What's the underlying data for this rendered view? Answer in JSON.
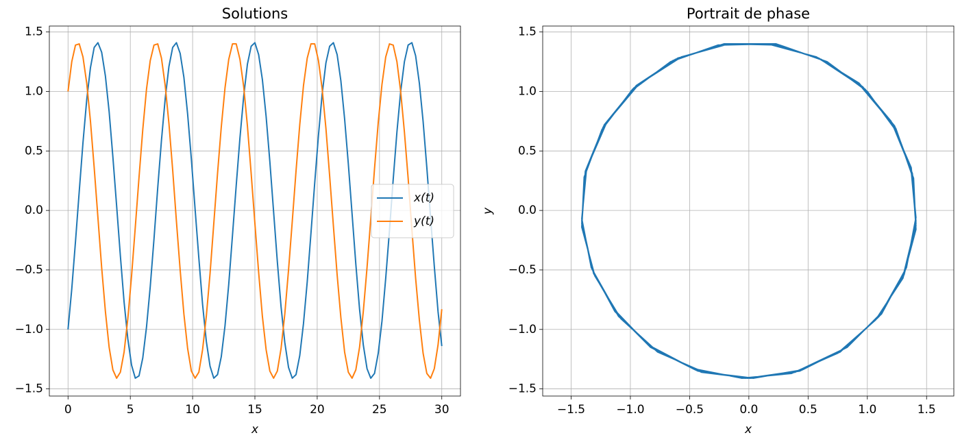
{
  "chart_data": [
    {
      "type": "line",
      "title": "Solutions",
      "xlabel": "x",
      "x": [
        0,
        0.3,
        0.6,
        0.9,
        1.2,
        1.5,
        1.8,
        2.1,
        2.4,
        2.7,
        3,
        3.3,
        3.6,
        3.9,
        4.2,
        4.5,
        4.8,
        5.1,
        5.4,
        5.7,
        6,
        6.3,
        6.6,
        6.9,
        7.2,
        7.5,
        7.8,
        8.1,
        8.4,
        8.7,
        9,
        9.3,
        9.6,
        9.9,
        10.2,
        10.5,
        10.8,
        11.1,
        11.4,
        11.7,
        12,
        12.3,
        12.6,
        12.9,
        13.2,
        13.5,
        13.8,
        14.1,
        14.4,
        14.7,
        15,
        15.3,
        15.6,
        15.9,
        16.2,
        16.5,
        16.8,
        17.1,
        17.4,
        17.7,
        18,
        18.3,
        18.6,
        18.9,
        19.2,
        19.5,
        19.8,
        20.1,
        20.4,
        20.7,
        21,
        21.3,
        21.6,
        21.9,
        22.2,
        22.5,
        22.8,
        23.1,
        23.4,
        23.7,
        24,
        24.3,
        24.6,
        24.9,
        25.2,
        25.5,
        25.8,
        26.1,
        26.4,
        26.7,
        27,
        27.3,
        27.6,
        27.9,
        28.2,
        28.5,
        28.8,
        29.1,
        29.4,
        29.7,
        30
      ],
      "series": [
        {
          "name": "x(t)",
          "color": "#1f77b4",
          "values": [
            -1,
            -0.66,
            -0.26,
            0.16,
            0.57,
            0.93,
            1.2,
            1.37,
            1.41,
            1.33,
            1.13,
            0.83,
            0.45,
            0.04,
            -0.38,
            -0.77,
            -1.08,
            -1.3,
            -1.41,
            -1.39,
            -1.24,
            -0.98,
            -0.64,
            -0.24,
            0.19,
            0.59,
            0.94,
            1.21,
            1.37,
            1.41,
            1.32,
            1.12,
            0.81,
            0.43,
            0.01,
            -0.4,
            -0.79,
            -1.1,
            -1.31,
            -1.41,
            -1.38,
            -1.23,
            -0.97,
            -0.62,
            -0.21,
            0.21,
            0.61,
            0.96,
            1.23,
            1.38,
            1.41,
            1.31,
            1.1,
            0.79,
            0.41,
            -0.01,
            -0.43,
            -0.81,
            -1.11,
            -1.32,
            -1.41,
            -1.38,
            -1.22,
            -0.95,
            -0.6,
            -0.19,
            0.23,
            0.63,
            0.98,
            1.24,
            1.38,
            1.41,
            1.31,
            1.09,
            0.77,
            0.39,
            -0.03,
            -0.45,
            -0.83,
            -1.13,
            -1.33,
            -1.41,
            -1.37,
            -1.2,
            -0.93,
            -0.57,
            -0.17,
            0.26,
            0.66,
            1,
            1.25,
            1.39,
            1.41,
            1.3,
            1.07,
            0.75,
            0.36,
            -0.06,
            -0.47,
            -0.85,
            -1.14
          ]
        },
        {
          "name": "y(t)",
          "color": "#ff7f0e",
          "values": [
            1,
            1.25,
            1.39,
            1.4,
            1.29,
            1.07,
            0.75,
            0.36,
            -0.06,
            -0.48,
            -0.85,
            -1.15,
            -1.34,
            -1.41,
            -1.36,
            -1.19,
            -0.91,
            -0.55,
            -0.14,
            0.28,
            0.68,
            1.02,
            1.26,
            1.39,
            1.4,
            1.28,
            1.05,
            0.73,
            0.34,
            -0.09,
            -0.5,
            -0.87,
            -1.16,
            -1.35,
            -1.41,
            -1.36,
            -1.17,
            -0.89,
            -0.53,
            -0.11,
            0.31,
            0.7,
            1.03,
            1.27,
            1.4,
            1.4,
            1.27,
            1.04,
            0.71,
            0.31,
            -0.11,
            -0.52,
            -0.89,
            -1.17,
            -1.35,
            -1.41,
            -1.35,
            -1.16,
            -0.87,
            -0.5,
            -0.09,
            0.33,
            0.72,
            1.05,
            1.28,
            1.4,
            1.4,
            1.26,
            1.02,
            0.69,
            0.29,
            -0.13,
            -0.54,
            -0.9,
            -1.19,
            -1.36,
            -1.41,
            -1.34,
            -1.15,
            -0.85,
            -0.48,
            -0.07,
            0.35,
            0.74,
            1.06,
            1.29,
            1.4,
            1.39,
            1.25,
            1,
            0.66,
            0.27,
            -0.16,
            -0.57,
            -0.92,
            -1.2,
            -1.37,
            -1.41,
            -1.33,
            -1.13,
            -0.83
          ]
        }
      ],
      "xlim": [
        -1.5,
        31.5
      ],
      "ylim": [
        -1.56,
        1.55
      ],
      "xticks": [
        0,
        5,
        10,
        15,
        20,
        25,
        30
      ],
      "yticks": [
        {
          "value": -1.5,
          "label": "−1.5"
        },
        {
          "value": -1,
          "label": "−1.0"
        },
        {
          "value": -0.5,
          "label": "−0.5"
        },
        {
          "value": 0,
          "label": "0.0"
        },
        0.5,
        {
          "value": 1,
          "label": "1.0"
        },
        1.5
      ],
      "grid": true,
      "legend": "center right"
    },
    {
      "type": "line",
      "title": "Portrait de phase",
      "xlabel": "x",
      "ylabel": "y",
      "x": [
        -1,
        -0.66,
        -0.26,
        0.16,
        0.57,
        0.93,
        1.2,
        1.37,
        1.41,
        1.33,
        1.13,
        0.83,
        0.45,
        0.04,
        -0.38,
        -0.77,
        -1.08,
        -1.3,
        -1.41,
        -1.39,
        -1.24,
        -0.98,
        -0.64,
        -0.24,
        0.19,
        0.59,
        0.94,
        1.21,
        1.37,
        1.41,
        1.32,
        1.12,
        0.81,
        0.43,
        0.01,
        -0.4,
        -0.79,
        -1.1,
        -1.31,
        -1.41,
        -1.38,
        -1.23,
        -0.97,
        -0.62,
        -0.21,
        0.21,
        0.61,
        0.96,
        1.23,
        1.38,
        1.41,
        1.31,
        1.1,
        0.79,
        0.41,
        -0.01,
        -0.43,
        -0.81,
        -1.11,
        -1.32,
        -1.41,
        -1.38,
        -1.22,
        -0.95,
        -0.6,
        -0.19,
        0.23,
        0.63,
        0.98,
        1.24,
        1.38,
        1.41,
        1.31,
        1.09,
        0.77,
        0.39,
        -0.03,
        -0.45,
        -0.83,
        -1.13,
        -1.33,
        -1.41,
        -1.37,
        -1.2,
        -0.93,
        -0.57,
        -0.17,
        0.26,
        0.66,
        1,
        1.25,
        1.39,
        1.41,
        1.3,
        1.07,
        0.75,
        0.36,
        -0.06,
        -0.47,
        -0.85,
        -1.14
      ],
      "series": [
        {
          "color": "#1f77b4",
          "values": [
            1,
            1.25,
            1.39,
            1.4,
            1.29,
            1.07,
            0.75,
            0.36,
            -0.06,
            -0.48,
            -0.85,
            -1.15,
            -1.34,
            -1.41,
            -1.36,
            -1.19,
            -0.91,
            -0.55,
            -0.14,
            0.28,
            0.68,
            1.02,
            1.26,
            1.39,
            1.4,
            1.28,
            1.05,
            0.73,
            0.34,
            -0.09,
            -0.5,
            -0.87,
            -1.16,
            -1.35,
            -1.41,
            -1.36,
            -1.17,
            -0.89,
            -0.53,
            -0.11,
            0.31,
            0.7,
            1.03,
            1.27,
            1.4,
            1.4,
            1.27,
            1.04,
            0.71,
            0.31,
            -0.11,
            -0.52,
            -0.89,
            -1.17,
            -1.35,
            -1.41,
            -1.35,
            -1.16,
            -0.87,
            -0.5,
            -0.09,
            0.33,
            0.72,
            1.05,
            1.28,
            1.4,
            1.4,
            1.26,
            1.02,
            0.69,
            0.29,
            -0.13,
            -0.54,
            -0.9,
            -1.19,
            -1.36,
            -1.41,
            -1.34,
            -1.15,
            -0.85,
            -0.48,
            -0.07,
            0.35,
            0.74,
            1.06,
            1.29,
            1.4,
            1.39,
            1.25,
            1,
            0.66,
            0.27,
            -0.16,
            -0.57,
            -0.92,
            -1.2,
            -1.37,
            -1.41,
            -1.33,
            -1.13,
            -0.83
          ]
        }
      ],
      "xlim": [
        -1.74,
        1.73
      ],
      "ylim": [
        -1.56,
        1.55
      ],
      "xticks": [
        {
          "value": -1.5,
          "label": "−1.5"
        },
        {
          "value": -1,
          "label": "−1.0"
        },
        {
          "value": -0.5,
          "label": "−0.5"
        },
        {
          "value": 0,
          "label": "0.0"
        },
        0.5,
        {
          "value": 1,
          "label": "1.0"
        },
        1.5
      ],
      "yticks": [
        {
          "value": -1.5,
          "label": "−1.5"
        },
        {
          "value": -1,
          "label": "−1.0"
        },
        {
          "value": -0.5,
          "label": "−0.5"
        },
        {
          "value": 0,
          "label": "0.0"
        },
        0.5,
        {
          "value": 1,
          "label": "1.0"
        },
        1.5
      ],
      "grid": true
    }
  ]
}
